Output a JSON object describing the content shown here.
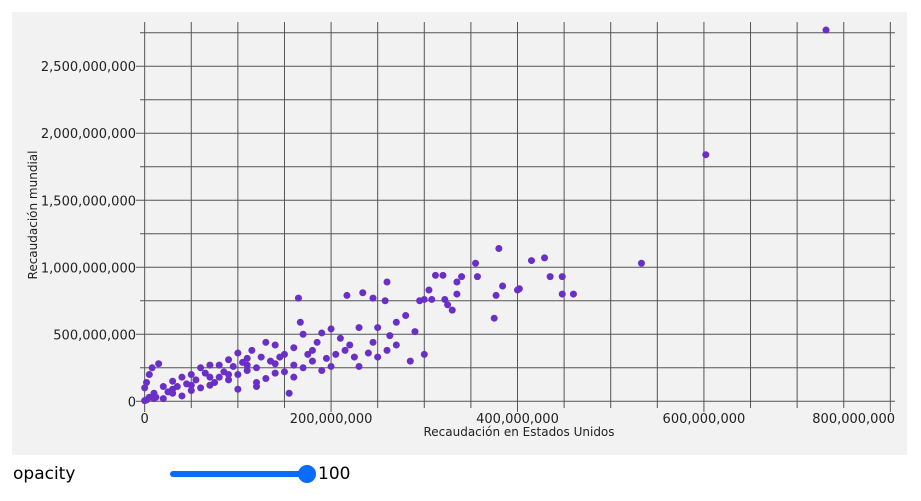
{
  "chart_data": {
    "type": "scatter",
    "x_label": "Recaudación en Estados Unidos",
    "y_label": "Recaudación mundial",
    "color": "#6a2fc6",
    "grid": true,
    "xlim": [
      -5000000,
      805000000
    ],
    "ylim": [
      -50000000,
      2830000000
    ],
    "xticks": [
      {
        "value": 0,
        "label": "0"
      },
      {
        "value": 200000000,
        "label": "200,000,000"
      },
      {
        "value": 400000000,
        "label": "400,000,000"
      },
      {
        "value": 600000000,
        "label": "600,000,000"
      },
      {
        "value": 800000000,
        "label": "800,000,000"
      }
    ],
    "yticks": [
      {
        "value": 0,
        "label": "0"
      },
      {
        "value": 500000000,
        "label": "500,000,000"
      },
      {
        "value": 1000000000,
        "label": "1,000,000,000"
      },
      {
        "value": 1500000000,
        "label": "1,500,000,000"
      },
      {
        "value": 2000000000,
        "label": "2,000,000,000"
      },
      {
        "value": 2500000000,
        "label": "2,500,000,000"
      }
    ],
    "xgrid": [
      0,
      50000000,
      100000000,
      150000000,
      200000000,
      250000000,
      300000000,
      350000000,
      400000000,
      450000000,
      500000000,
      550000000,
      600000000,
      650000000,
      700000000,
      750000000,
      800000000
    ],
    "ygrid": [
      0,
      250000000,
      500000000,
      750000000,
      1000000000,
      1250000000,
      1500000000,
      1750000000,
      2000000000,
      2250000000,
      2500000000,
      2750000000
    ],
    "x": [
      731000000,
      602000000,
      533000000,
      460000000,
      448000000,
      435000000,
      448000000,
      429000000,
      415000000,
      402000000,
      400000000,
      380000000,
      375000000,
      377000000,
      384000000,
      355000000,
      357000000,
      340000000,
      335000000,
      320000000,
      312000000,
      305000000,
      300000000,
      295000000,
      308000000,
      325000000,
      330000000,
      335000000,
      322000000,
      260000000,
      258000000,
      245000000,
      234000000,
      217000000,
      165000000,
      167000000,
      250000000,
      270000000,
      280000000,
      263000000,
      290000000,
      260000000,
      245000000,
      230000000,
      210000000,
      200000000,
      190000000,
      170000000,
      160000000,
      180000000,
      220000000,
      240000000,
      195000000,
      175000000,
      150000000,
      140000000,
      130000000,
      125000000,
      115000000,
      110000000,
      100000000,
      90000000,
      80000000,
      70000000,
      60000000,
      50000000,
      40000000,
      30000000,
      20000000,
      10000000,
      5000000,
      2000000,
      0,
      0,
      5000000,
      2000000,
      15000000,
      8000000,
      30000000,
      60000000,
      90000000,
      110000000,
      120000000,
      100000000,
      80000000,
      130000000,
      155000000,
      150000000,
      140000000,
      170000000,
      160000000,
      120000000,
      50000000,
      70000000,
      40000000,
      20000000,
      65000000,
      95000000,
      105000000,
      135000000,
      145000000,
      185000000,
      205000000,
      215000000,
      225000000,
      180000000,
      200000000,
      85000000,
      55000000,
      35000000,
      25000000,
      12000000,
      45000000,
      75000000,
      100000000,
      120000000,
      140000000,
      160000000,
      190000000,
      230000000,
      250000000,
      270000000,
      285000000,
      300000000,
      10000000,
      30000000,
      50000000,
      70000000,
      90000000,
      110000000
    ],
    "values": [
      2770000000,
      1840000000,
      1030000000,
      800000000,
      930000000,
      930000000,
      800000000,
      1070000000,
      1050000000,
      840000000,
      830000000,
      1140000000,
      620000000,
      790000000,
      860000000,
      1030000000,
      930000000,
      930000000,
      890000000,
      940000000,
      940000000,
      830000000,
      760000000,
      750000000,
      760000000,
      720000000,
      680000000,
      800000000,
      760000000,
      890000000,
      750000000,
      770000000,
      810000000,
      790000000,
      770000000,
      590000000,
      550000000,
      590000000,
      640000000,
      490000000,
      520000000,
      380000000,
      440000000,
      550000000,
      470000000,
      540000000,
      510000000,
      500000000,
      400000000,
      380000000,
      420000000,
      360000000,
      320000000,
      350000000,
      350000000,
      420000000,
      440000000,
      330000000,
      380000000,
      320000000,
      360000000,
      310000000,
      270000000,
      270000000,
      250000000,
      200000000,
      180000000,
      150000000,
      110000000,
      60000000,
      30000000,
      10000000,
      5000000,
      100000000,
      200000000,
      140000000,
      280000000,
      250000000,
      60000000,
      100000000,
      160000000,
      230000000,
      250000000,
      200000000,
      180000000,
      170000000,
      60000000,
      220000000,
      280000000,
      250000000,
      180000000,
      140000000,
      80000000,
      120000000,
      40000000,
      20000000,
      210000000,
      260000000,
      290000000,
      300000000,
      330000000,
      440000000,
      350000000,
      380000000,
      330000000,
      300000000,
      260000000,
      220000000,
      160000000,
      110000000,
      70000000,
      30000000,
      130000000,
      140000000,
      90000000,
      110000000,
      210000000,
      270000000,
      230000000,
      260000000,
      330000000,
      420000000,
      300000000,
      350000000,
      20000000,
      90000000,
      120000000,
      180000000,
      200000000,
      270000000
    ]
  },
  "controls": {
    "label": "opacity",
    "value": 100
  }
}
